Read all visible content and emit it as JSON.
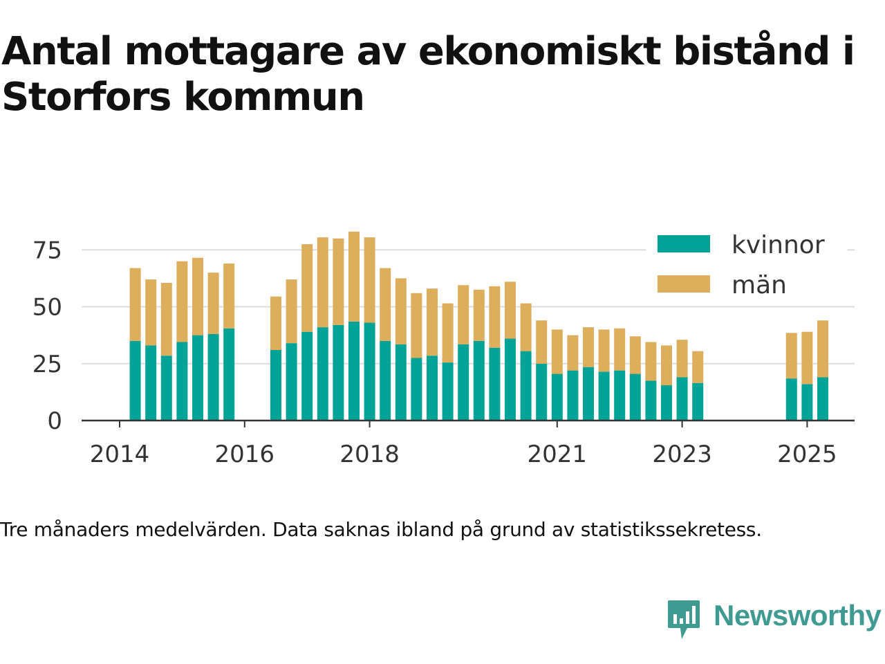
{
  "title": "Antal mottagare av ekonomiskt bistånd i Storfors kommun",
  "footnote": "Tre månaders medelvärden. Data saknas ibland på grund av statistikssekretess.",
  "brand": {
    "name": "Newsworthy",
    "icon": "newsworthy-logo-icon",
    "color": "#3f9a92"
  },
  "colors": {
    "kvinnor": "#00a396",
    "man": "#ddae5c",
    "grid": "#dddddd",
    "axis": "#333333",
    "text": "#333333"
  },
  "chart_data": {
    "type": "bar",
    "stacked": true,
    "x_type": "quarter",
    "x_range": [
      "2014-Q1",
      "2025-Q4"
    ],
    "y_range": [
      0,
      83
    ],
    "y_ticks": [
      0,
      25,
      50,
      75
    ],
    "x_tick_labels": [
      {
        "label": "2014",
        "at": "2014-Q1"
      },
      {
        "label": "2016",
        "at": "2016-Q1"
      },
      {
        "label": "2018",
        "at": "2018-Q1"
      },
      {
        "label": "2021",
        "at": "2021-Q1"
      },
      {
        "label": "2023",
        "at": "2023-Q1"
      },
      {
        "label": "2025",
        "at": "2025-Q1"
      }
    ],
    "grid": "horizontal",
    "legend_position": "top-right",
    "categories": [
      "2014-Q2",
      "2014-Q3",
      "2014-Q4",
      "2015-Q1",
      "2015-Q2",
      "2015-Q3",
      "2015-Q4",
      "2016-Q3",
      "2016-Q4",
      "2017-Q1",
      "2017-Q2",
      "2017-Q3",
      "2017-Q4",
      "2018-Q1",
      "2018-Q2",
      "2018-Q3",
      "2018-Q4",
      "2019-Q1",
      "2019-Q2",
      "2019-Q3",
      "2019-Q4",
      "2020-Q1",
      "2020-Q2",
      "2020-Q3",
      "2020-Q4",
      "2021-Q1",
      "2021-Q2",
      "2021-Q3",
      "2021-Q4",
      "2022-Q1",
      "2022-Q2",
      "2022-Q3",
      "2022-Q4",
      "2023-Q1",
      "2023-Q2",
      "2024-Q4",
      "2025-Q1",
      "2025-Q2"
    ],
    "series": [
      {
        "name": "kvinnor",
        "values": [
          35,
          33,
          28.5,
          34.5,
          37.5,
          38,
          40.5,
          31,
          34,
          39,
          41,
          42,
          43.5,
          43,
          35,
          33.5,
          27.5,
          28.5,
          25.5,
          33.5,
          35,
          32,
          36,
          30.5,
          25,
          20.5,
          22,
          23.5,
          21.5,
          22,
          20.5,
          17.5,
          15.5,
          19,
          16.5,
          18.5,
          16,
          19
        ]
      },
      {
        "name": "män",
        "values": [
          32,
          29,
          32,
          35.5,
          34,
          27,
          28.5,
          23.5,
          28,
          38.5,
          39.5,
          38,
          39.5,
          37.5,
          32,
          29,
          28.5,
          29.5,
          26,
          26,
          22.5,
          27,
          25,
          21,
          19,
          19.5,
          15.5,
          17.5,
          18.5,
          18.5,
          16.5,
          17,
          17.5,
          16.5,
          14,
          20,
          23,
          25
        ]
      }
    ]
  }
}
